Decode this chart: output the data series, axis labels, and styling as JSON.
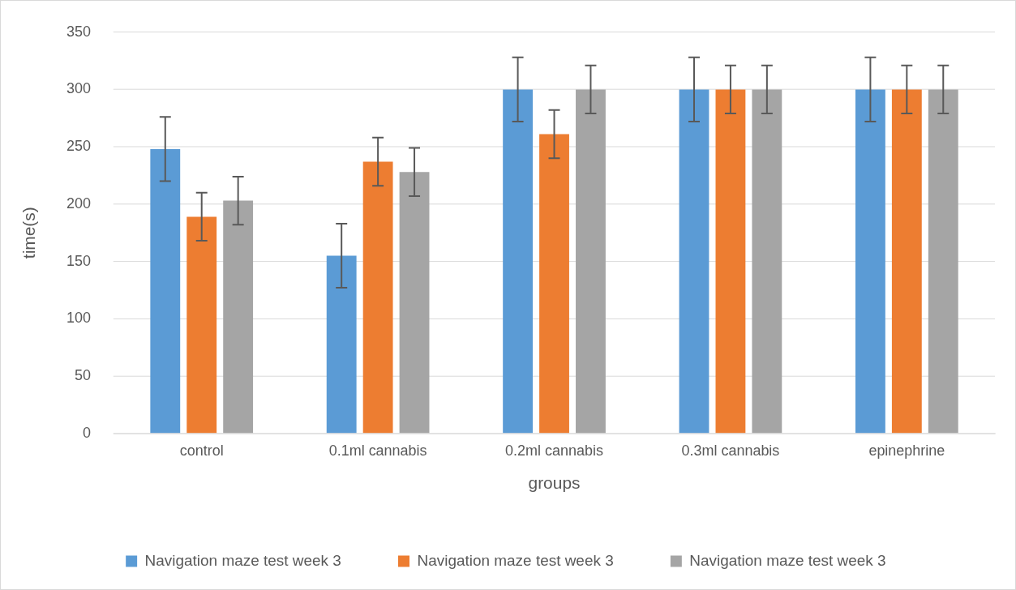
{
  "chart_data": {
    "type": "bar",
    "xlabel": "groups",
    "ylabel": "time(s)",
    "categories": [
      "control",
      "0.1ml cannabis",
      "0.2ml cannabis",
      "0.3ml cannabis",
      "epinephrine"
    ],
    "series": [
      {
        "name": "Navigation maze test week 3",
        "color": "#5b9bd5",
        "values": [
          248,
          155,
          300,
          300,
          300
        ],
        "errors": [
          28,
          28,
          28,
          28,
          28
        ]
      },
      {
        "name": "Navigation maze test week 3",
        "color": "#ed7d31",
        "values": [
          189,
          237,
          261,
          300,
          300
        ],
        "errors": [
          21,
          21,
          21,
          21,
          21
        ]
      },
      {
        "name": "Navigation maze test week 3",
        "color": "#a5a5a5",
        "values": [
          203,
          228,
          300,
          300,
          300
        ],
        "errors": [
          21,
          21,
          21,
          21,
          21
        ]
      }
    ],
    "ylim": [
      0,
      350
    ],
    "yticks": [
      0,
      50,
      100,
      150,
      200,
      250,
      300,
      350
    ],
    "grid": "y",
    "legend": "bottom"
  }
}
